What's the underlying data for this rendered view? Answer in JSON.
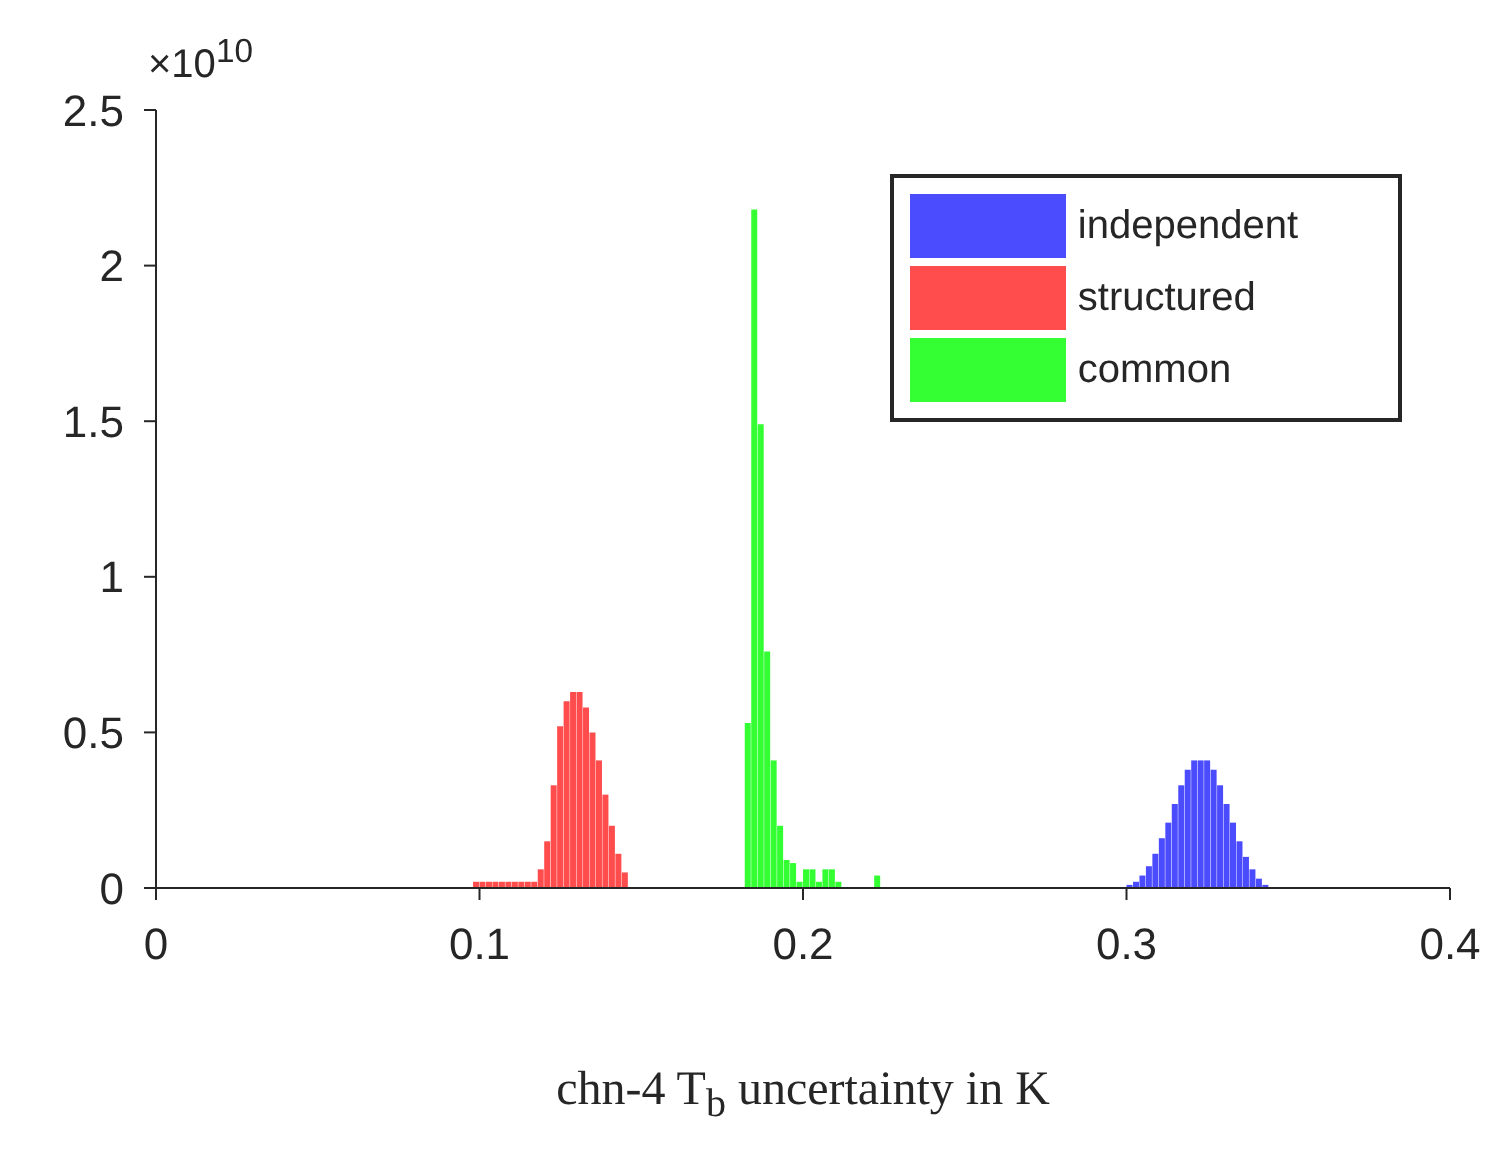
{
  "chart_data": {
    "type": "histogram",
    "xlabel": "chn-4 T$_{b}$ uncertainty in K",
    "annotations": [
      "×10$^{10}$"
    ],
    "xlim": [
      0,
      0.4
    ],
    "xticks": [
      0,
      0.1,
      0.2,
      0.3,
      0.4
    ],
    "ylim": [
      0,
      2.5
    ],
    "yticks": [
      0,
      0.5,
      1,
      1.5,
      2,
      2.5
    ],
    "legend": "top right",
    "bins": [
      0.096,
      0.098,
      0.1,
      0.102,
      0.104,
      0.106,
      0.108,
      0.11,
      0.112,
      0.114,
      0.116,
      0.118,
      0.12,
      0.122,
      0.124,
      0.126,
      0.128,
      0.13,
      0.132,
      0.134,
      0.136,
      0.138,
      0.14,
      0.142,
      0.144,
      0.146,
      0.148,
      0.15,
      0.152,
      0.154,
      0.156,
      0.158,
      0.16,
      0.162,
      0.164,
      0.166,
      0.168,
      0.17,
      0.172,
      0.174,
      0.176,
      0.178,
      0.18,
      0.182,
      0.184,
      0.186,
      0.188,
      0.19,
      0.192,
      0.194,
      0.196,
      0.198,
      0.2,
      0.202,
      0.204,
      0.206,
      0.208,
      0.21,
      0.212,
      0.214,
      0.216,
      0.218,
      0.22,
      0.222,
      0.224,
      0.226,
      0.228,
      0.23,
      0.232,
      0.234,
      0.236,
      0.238,
      0.24,
      0.242,
      0.244,
      0.246,
      0.248,
      0.25,
      0.252,
      0.254,
      0.256,
      0.258,
      0.26,
      0.262,
      0.264,
      0.266,
      0.268,
      0.27,
      0.272,
      0.274,
      0.276,
      0.278,
      0.28,
      0.282,
      0.284,
      0.286,
      0.288,
      0.29,
      0.292,
      0.294,
      0.296,
      0.298,
      0.3,
      0.302,
      0.304,
      0.306,
      0.308,
      0.31,
      0.312,
      0.314,
      0.316,
      0.318,
      0.32,
      0.322,
      0.324,
      0.326,
      0.328,
      0.33,
      0.332,
      0.334,
      0.336,
      0.338,
      0.34,
      0.342,
      0.344,
      0.346
    ],
    "series": [
      {
        "name": "independent",
        "color": "#4c4cff",
        "values": [
          null,
          null,
          null,
          null,
          null,
          null,
          null,
          null,
          null,
          null,
          null,
          null,
          null,
          null,
          null,
          null,
          null,
          null,
          null,
          null,
          null,
          null,
          null,
          null,
          null,
          null,
          null,
          null,
          null,
          null,
          null,
          null,
          null,
          null,
          null,
          null,
          null,
          null,
          null,
          null,
          null,
          null,
          null,
          null,
          null,
          null,
          null,
          null,
          null,
          null,
          null,
          null,
          null,
          null,
          null,
          null,
          null,
          null,
          null,
          null,
          null,
          null,
          null,
          null,
          null,
          null,
          null,
          null,
          null,
          null,
          null,
          null,
          null,
          null,
          null,
          null,
          null,
          null,
          null,
          null,
          null,
          null,
          null,
          null,
          null,
          null,
          null,
          null,
          null,
          null,
          null,
          null,
          null,
          null,
          null,
          null,
          null,
          null,
          null,
          null,
          null,
          null,
          0.01,
          0.02,
          0.04,
          0.07,
          0.11,
          0.16,
          0.21,
          0.27,
          0.33,
          0.38,
          0.41,
          0.41,
          0.41,
          0.38,
          0.33,
          0.27,
          0.21,
          0.15,
          0.1,
          0.06,
          0.03,
          0.01,
          null
        ]
      },
      {
        "name": "structured",
        "color": "#ff4c4c",
        "values": [
          null,
          0.02,
          0.02,
          0.02,
          0.02,
          0.02,
          0.02,
          0.02,
          0.02,
          0.02,
          0.02,
          0.06,
          0.15,
          0.33,
          0.52,
          0.6,
          0.63,
          0.63,
          0.58,
          0.5,
          0.41,
          0.3,
          0.2,
          0.11,
          0.05,
          null,
          null,
          null,
          null,
          null,
          null,
          null,
          null,
          null,
          null,
          null,
          null,
          null,
          null,
          null,
          null,
          null,
          null,
          null,
          null,
          null,
          null,
          null,
          null,
          null,
          null,
          null,
          null,
          null,
          null,
          null,
          null,
          null,
          null,
          null,
          null,
          null,
          null,
          null,
          null,
          null,
          null,
          null,
          null,
          null,
          null,
          null,
          null,
          null,
          null,
          null,
          null,
          null,
          null,
          null,
          null,
          null,
          null,
          null,
          null,
          null,
          null,
          null,
          null,
          null,
          null,
          null,
          null,
          null,
          null,
          null,
          null,
          null,
          null,
          null,
          null,
          null,
          null,
          null,
          null,
          null,
          null,
          null,
          null,
          null,
          null,
          null,
          null,
          null,
          null,
          null,
          null,
          null,
          null,
          null,
          null,
          null,
          null,
          null,
          null
        ]
      },
      {
        "name": "common",
        "color": "#33ff33",
        "values": [
          null,
          null,
          null,
          null,
          null,
          null,
          null,
          null,
          null,
          null,
          null,
          null,
          null,
          null,
          null,
          null,
          null,
          null,
          null,
          null,
          null,
          null,
          null,
          null,
          null,
          null,
          null,
          null,
          null,
          null,
          null,
          null,
          null,
          null,
          null,
          null,
          null,
          null,
          null,
          null,
          null,
          null,
          null,
          0.53,
          2.18,
          1.49,
          0.76,
          0.41,
          0.2,
          0.09,
          0.08,
          0.02,
          0.06,
          0.06,
          0.02,
          0.06,
          0.06,
          0.02,
          null,
          null,
          null,
          null,
          null,
          0.04,
          null,
          null,
          null,
          null,
          null,
          null,
          null,
          null,
          null,
          null,
          null,
          null,
          null,
          null,
          null,
          null,
          null,
          null,
          null,
          null,
          null,
          null,
          null,
          null,
          null,
          null,
          null,
          null,
          null,
          null,
          null,
          null,
          null,
          null,
          null,
          null,
          null,
          null,
          null,
          null,
          null,
          null,
          null,
          null,
          null,
          null,
          null,
          null,
          null,
          null,
          null,
          null,
          null,
          null,
          null,
          null,
          null,
          null,
          null,
          null,
          null
        ]
      }
    ]
  }
}
